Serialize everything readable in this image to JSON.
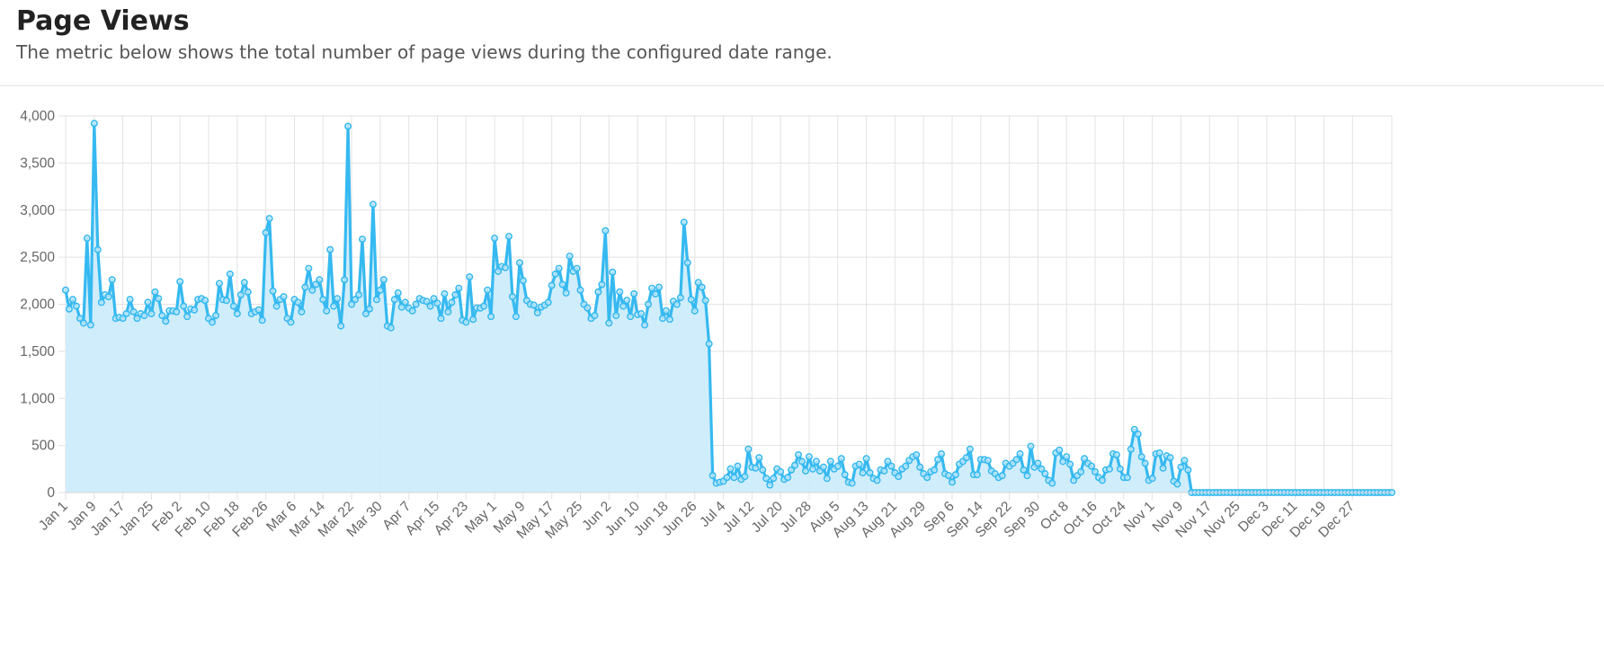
{
  "header": {
    "title": "Page Views",
    "subtitle": "The metric below shows the total number of page views during the configured date range."
  },
  "chart_data": {
    "type": "area",
    "title": "",
    "xlabel": "",
    "ylabel": "",
    "ylim": [
      0,
      4000
    ],
    "y_ticks": [
      "0",
      "500",
      "1,000",
      "1,500",
      "2,000",
      "2,500",
      "3,000",
      "3,500",
      "4,000"
    ],
    "x_tick_labels": [
      "Jan 1",
      "Jan 9",
      "Jan 17",
      "Jan 25",
      "Feb 2",
      "Feb 10",
      "Feb 18",
      "Feb 26",
      "Mar 6",
      "Mar 14",
      "Mar 22",
      "Mar 30",
      "Apr 7",
      "Apr 15",
      "Apr 23",
      "May 1",
      "May 9",
      "May 17",
      "May 25",
      "Jun 2",
      "Jun 10",
      "Jun 18",
      "Jun 26",
      "Jul 4",
      "Jul 12",
      "Jul 20",
      "Jul 28",
      "Aug 5",
      "Aug 13",
      "Aug 21",
      "Aug 29",
      "Sep 6",
      "Sep 14",
      "Sep 22",
      "Sep 30",
      "Oct 8",
      "Oct 16",
      "Oct 24",
      "Nov 1",
      "Nov 9",
      "Nov 17",
      "Nov 25",
      "Dec 3",
      "Dec 11",
      "Dec 19",
      "Dec 27"
    ],
    "x_start": "Jan 1",
    "x_end": "Dec 31",
    "grid": true,
    "legend": "none",
    "line_color": "#36b9f0",
    "fill_color": "#cdecfb",
    "values": [
      2150,
      1950,
      2050,
      1980,
      1850,
      1800,
      2700,
      1780,
      3920,
      2580,
      2020,
      2100,
      2080,
      2260,
      1850,
      1860,
      1850,
      1900,
      2050,
      1920,
      1850,
      1900,
      1880,
      2020,
      1900,
      2130,
      2060,
      1880,
      1820,
      1930,
      1930,
      1920,
      2240,
      1980,
      1870,
      1950,
      1940,
      2050,
      2060,
      2040,
      1850,
      1810,
      1880,
      2220,
      2050,
      2040,
      2320,
      1980,
      1900,
      2100,
      2230,
      2130,
      1900,
      1920,
      1940,
      1830,
      2760,
      2910,
      2140,
      1980,
      2050,
      2080,
      1850,
      1810,
      2050,
      2020,
      1920,
      2180,
      2380,
      2150,
      2210,
      2260,
      2050,
      1930,
      2580,
      1980,
      2060,
      1770,
      2260,
      3890,
      2000,
      2050,
      2100,
      2690,
      1900,
      1950,
      3060,
      2050,
      2150,
      2260,
      1770,
      1750,
      2050,
      2120,
      1970,
      2020,
      1960,
      1930,
      2000,
      2060,
      2040,
      2030,
      1980,
      2060,
      2010,
      1850,
      2110,
      1920,
      2020,
      2100,
      2170,
      1830,
      1810,
      2290,
      1840,
      1960,
      1960,
      1980,
      2150,
      1870,
      2700,
      2350,
      2400,
      2390,
      2720,
      2080,
      1870,
      2440,
      2250,
      2040,
      2000,
      1990,
      1910,
      1970,
      1990,
      2020,
      2200,
      2320,
      2380,
      2210,
      2120,
      2510,
      2350,
      2380,
      2150,
      2000,
      1960,
      1850,
      1880,
      2130,
      2210,
      2780,
      1800,
      2340,
      1880,
      2130,
      1980,
      2040,
      1870,
      2110,
      1890,
      1900,
      1780,
      2000,
      2170,
      2110,
      2180,
      1850,
      1930,
      1840,
      2030,
      2000,
      2070,
      2870,
      2440,
      2050,
      1930,
      2230,
      2180,
      2040,
      1580,
      180,
      100,
      110,
      120,
      160,
      250,
      160,
      280,
      140,
      170,
      460,
      270,
      260,
      370,
      240,
      150,
      80,
      150,
      250,
      220,
      140,
      160,
      240,
      290,
      400,
      330,
      230,
      380,
      250,
      330,
      230,
      270,
      150,
      330,
      250,
      280,
      360,
      190,
      110,
      100,
      280,
      300,
      210,
      360,
      210,
      150,
      130,
      240,
      230,
      330,
      280,
      210,
      170,
      250,
      280,
      340,
      380,
      400,
      270,
      200,
      160,
      220,
      240,
      350,
      410,
      200,
      180,
      110,
      190,
      300,
      330,
      370,
      460,
      190,
      190,
      350,
      350,
      340,
      230,
      200,
      160,
      180,
      310,
      280,
      310,
      350,
      410,
      240,
      180,
      490,
      270,
      310,
      250,
      200,
      130,
      100,
      420,
      450,
      330,
      380,
      300,
      130,
      180,
      220,
      360,
      310,
      280,
      220,
      160,
      130,
      240,
      250,
      410,
      400,
      250,
      160,
      160,
      460,
      670,
      620,
      380,
      310,
      130,
      150,
      410,
      420,
      260,
      390,
      370,
      120,
      90,
      270,
      340,
      240,
      0,
      0,
      0,
      0,
      0,
      0,
      0,
      0,
      0,
      0,
      0,
      0,
      0,
      0,
      0,
      0,
      0,
      0,
      0,
      0,
      0,
      0,
      0,
      0,
      0,
      0,
      0,
      0,
      0,
      0,
      0,
      0,
      0,
      0,
      0,
      0,
      0,
      0,
      0,
      0,
      0,
      0,
      0,
      0,
      0,
      0,
      0,
      0,
      0,
      0,
      0,
      0,
      0,
      0,
      0,
      0,
      0
    ]
  }
}
